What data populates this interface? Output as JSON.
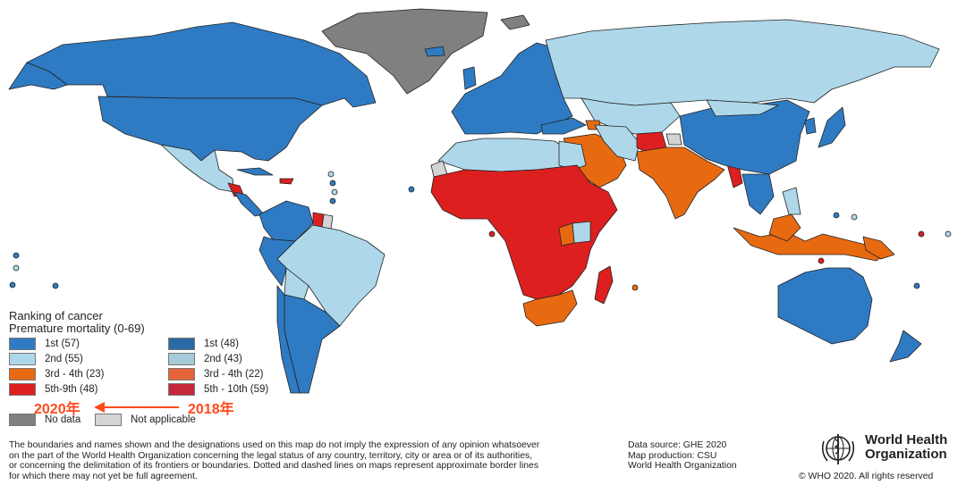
{
  "colors": {
    "c2020_1": "#2f7bc3",
    "c2020_2": "#aed8ea",
    "c2020_3": "#e86a10",
    "c2020_5": "#dd1f1f",
    "c2018_1": "#2a6aa6",
    "c2018_2": "#a3ccd8",
    "c2018_3": "#e5653a",
    "c2018_5": "#c4283a",
    "no_data": "#808080",
    "not_applicable": "#d4d4d4",
    "arrow": "#ff4a1c"
  },
  "legend": {
    "title_line1": "Ranking of cancer",
    "title_line2": "Premature mortality (0-69)",
    "items_2020": [
      {
        "label": "1st (57)",
        "color": "#2f7bc3"
      },
      {
        "label": "2nd (55)",
        "color": "#aed8ea"
      },
      {
        "label": "3rd - 4th (23)",
        "color": "#e86a10"
      },
      {
        "label": "5th-9th (48)",
        "color": "#dd1f1f"
      }
    ],
    "items_2018": [
      {
        "label": "1st (48)",
        "color": "#2a6aa6"
      },
      {
        "label": "2nd (43)",
        "color": "#a3ccd8"
      },
      {
        "label": "3rd - 4th (22)",
        "color": "#e5653a"
      },
      {
        "label": "5th - 10th (59)",
        "color": "#c4283a"
      }
    ],
    "year_2020": "2020年",
    "year_2018": "2018年",
    "no_data": "No data",
    "not_applicable": "Not applicable"
  },
  "footnote": {
    "line1": "The boundaries and names shown and the designations used on this map do not imply the expression of any opinion whatsoever",
    "line2": "on the part of the World Health Organization concerning the legal status of any country, territory, city or area or of its authorities,",
    "line3": "or concerning the delimitation of its frontiers or boundaries. Dotted and dashed lines on maps represent approximate border lines",
    "line4": "for which there may not yet be full agreement."
  },
  "credits": {
    "data_source": "Data source: GHE 2020",
    "map_production": "Map production: CSU",
    "organization": "World Health Organization"
  },
  "who_logo": {
    "line1": "World Health",
    "line2": "Organization"
  },
  "copyright": "© WHO 2020. All rights reserved"
}
